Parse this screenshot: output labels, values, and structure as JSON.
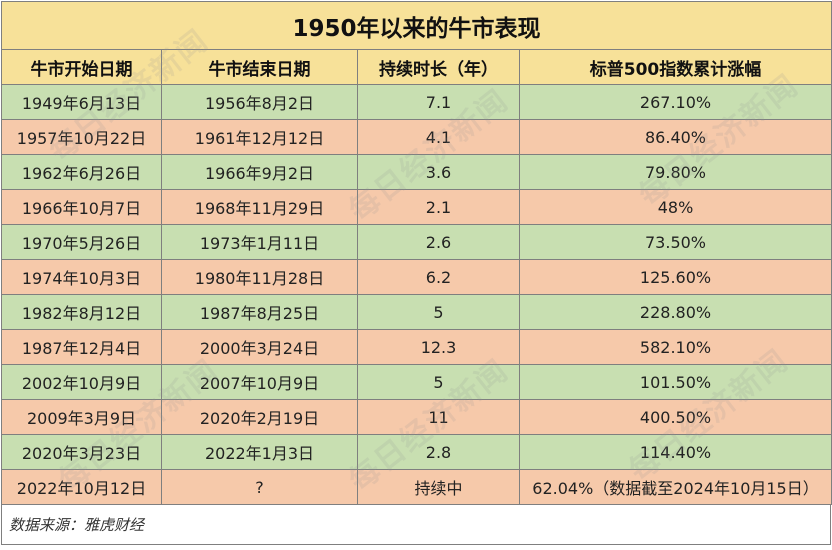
{
  "title": "1950年以来的牛市表现",
  "headers": [
    "牛市开始日期",
    "牛市结束日期",
    "持续时长（年）",
    "标普500指数累计涨幅"
  ],
  "rows": [
    {
      "start": "1949年6月13日",
      "end": "1956年8月2日",
      "duration": "7.1",
      "gain": "267.10%",
      "color": "green"
    },
    {
      "start": "1957年10月22日",
      "end": "1961年12月12日",
      "duration": "4.1",
      "gain": "86.40%",
      "color": "orange"
    },
    {
      "start": "1962年6月26日",
      "end": "1966年9月2日",
      "duration": "3.6",
      "gain": "79.80%",
      "color": "green"
    },
    {
      "start": "1966年10月7日",
      "end": "1968年11月29日",
      "duration": "2.1",
      "gain": "48%",
      "color": "orange"
    },
    {
      "start": "1970年5月26日",
      "end": "1973年1月11日",
      "duration": "2.6",
      "gain": "73.50%",
      "color": "green"
    },
    {
      "start": "1974年10月3日",
      "end": "1980年11月28日",
      "duration": "6.2",
      "gain": "125.60%",
      "color": "orange"
    },
    {
      "start": "1982年8月12日",
      "end": "1987年8月25日",
      "duration": "5",
      "gain": "228.80%",
      "color": "green"
    },
    {
      "start": "1987年12月4日",
      "end": "2000年3月24日",
      "duration": "12.3",
      "gain": "582.10%",
      "color": "orange"
    },
    {
      "start": "2002年10月9日",
      "end": "2007年10月9日",
      "duration": "5",
      "gain": "101.50%",
      "color": "green"
    },
    {
      "start": "2009年3月9日",
      "end": "2020年2月19日",
      "duration": "11",
      "gain": "400.50%",
      "color": "orange"
    },
    {
      "start": "2020年3月23日",
      "end": "2022年1月3日",
      "duration": "2.8",
      "gain": "114.40%",
      "color": "green"
    },
    {
      "start": "2022年10月12日",
      "end": "?",
      "duration": "持续中",
      "gain": "62.04%（数据截至2024年10月15日）",
      "color": "orange"
    }
  ],
  "source": "数据来源：雅虎财经",
  "watermark": "每日经济新闻",
  "colors": {
    "header_bg": "#f7e199",
    "row_green": "#c8dfb1",
    "row_orange": "#f6c9aa",
    "border": "#7f7f7f"
  }
}
